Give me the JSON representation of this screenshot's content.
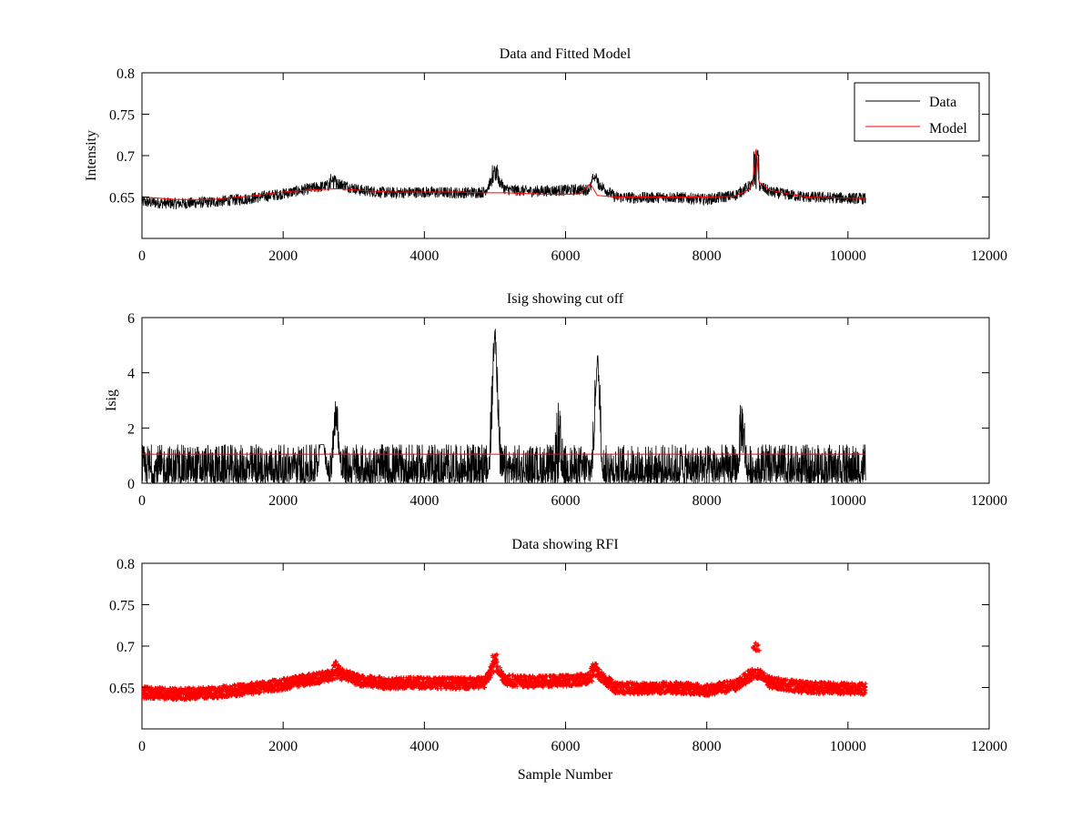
{
  "chart_data": [
    {
      "type": "line",
      "title": "Data and Fitted Model",
      "xlabel": "",
      "ylabel": "Intensity",
      "xlim": [
        0,
        12000
      ],
      "ylim": [
        0.6,
        0.8
      ],
      "xticks": [
        "0",
        "2000",
        "4000",
        "6000",
        "8000",
        "10000",
        "12000"
      ],
      "yticks": [
        "0.65",
        "0.7",
        "0.75",
        "0.8"
      ],
      "legend_position": "top-right",
      "series": [
        {
          "name": "Data",
          "color": "#000000",
          "style": "noisy-line",
          "x_range": [
            0,
            10250
          ],
          "noise_amplitude": 0.007,
          "baseline_points": [
            [
              0,
              0.644
            ],
            [
              500,
              0.642
            ],
            [
              1000,
              0.644
            ],
            [
              1500,
              0.648
            ],
            [
              2000,
              0.654
            ],
            [
              2500,
              0.662
            ],
            [
              2800,
              0.666
            ],
            [
              3100,
              0.658
            ],
            [
              3500,
              0.655
            ],
            [
              4000,
              0.656
            ],
            [
              4500,
              0.655
            ],
            [
              4850,
              0.656
            ],
            [
              5000,
              0.676
            ],
            [
              5150,
              0.659
            ],
            [
              5500,
              0.657
            ],
            [
              5900,
              0.658
            ],
            [
              6300,
              0.659
            ],
            [
              6450,
              0.667
            ],
            [
              6700,
              0.65
            ],
            [
              7000,
              0.649
            ],
            [
              7500,
              0.65
            ],
            [
              8000,
              0.647
            ],
            [
              8400,
              0.652
            ],
            [
              8600,
              0.663
            ],
            [
              8700,
              0.666
            ],
            [
              8900,
              0.656
            ],
            [
              9400,
              0.65
            ],
            [
              10250,
              0.648
            ]
          ],
          "spikes": [
            [
              2700,
              0.678
            ],
            [
              5000,
              0.69
            ],
            [
              6400,
              0.679
            ],
            [
              8700,
              0.708
            ]
          ]
        },
        {
          "name": "Model",
          "color": "#ff0000",
          "style": "line",
          "points": [
            [
              0,
              0.65
            ],
            [
              500,
              0.647
            ],
            [
              1000,
              0.647
            ],
            [
              1500,
              0.651
            ],
            [
              2000,
              0.656
            ],
            [
              2500,
              0.659
            ],
            [
              2800,
              0.66
            ],
            [
              3100,
              0.658
            ],
            [
              3500,
              0.656
            ],
            [
              4000,
              0.656
            ],
            [
              4500,
              0.656
            ],
            [
              4850,
              0.655
            ],
            [
              5000,
              0.655
            ],
            [
              5150,
              0.655
            ],
            [
              5500,
              0.654
            ],
            [
              5900,
              0.653
            ],
            [
              6200,
              0.654
            ],
            [
              6350,
              0.666
            ],
            [
              6450,
              0.652
            ],
            [
              6700,
              0.65
            ],
            [
              7000,
              0.65
            ],
            [
              7500,
              0.65
            ],
            [
              8000,
              0.65
            ],
            [
              8400,
              0.651
            ],
            [
              8600,
              0.659
            ],
            [
              8650,
              0.668
            ],
            [
              8700,
              0.708
            ],
            [
              8740,
              0.668
            ],
            [
              8900,
              0.658
            ],
            [
              9400,
              0.65
            ],
            [
              10250,
              0.648
            ]
          ]
        }
      ]
    },
    {
      "type": "line",
      "title": "Isig showing cut off",
      "xlabel": "",
      "ylabel": "Isig",
      "xlim": [
        0,
        12000
      ],
      "ylim": [
        0,
        6
      ],
      "xticks": [
        "0",
        "2000",
        "4000",
        "6000",
        "8000",
        "10000",
        "12000"
      ],
      "yticks": [
        "0",
        "2",
        "4",
        "6"
      ],
      "series": [
        {
          "color": "#000000",
          "style": "noisy-line",
          "x_range": [
            0,
            10250
          ],
          "base_max": 1.4,
          "peaks": [
            [
              2750,
              3.2
            ],
            [
              5000,
              5.8
            ],
            [
              5900,
              3.0
            ],
            [
              6450,
              4.8
            ],
            [
              8500,
              3.3
            ]
          ],
          "gaps": [
            [
              2550,
              2.0
            ],
            [
              2750,
              2.0
            ],
            [
              5000,
              5.0
            ],
            [
              6450,
              4.0
            ],
            [
              8500,
              1.2
            ]
          ]
        },
        {
          "color": "#ff0000",
          "style": "line",
          "points": [
            [
              0,
              1.05
            ],
            [
              10250,
              1.05
            ]
          ]
        }
      ]
    },
    {
      "type": "scatter",
      "title": "Data showing RFI",
      "xlabel": "Sample Number",
      "ylabel": "",
      "xlim": [
        0,
        12000
      ],
      "ylim": [
        0.6,
        0.8
      ],
      "xticks": [
        "0",
        "2000",
        "4000",
        "6000",
        "8000",
        "10000",
        "12000"
      ],
      "yticks": [
        "0.65",
        "0.7",
        "0.75",
        "0.8"
      ],
      "series": [
        {
          "color": "#ff0000",
          "style": "dense-markers",
          "x_range": [
            0,
            10250
          ],
          "noise_amplitude": 0.007,
          "baseline_points": [
            [
              0,
              0.644
            ],
            [
              500,
              0.642
            ],
            [
              1000,
              0.644
            ],
            [
              1500,
              0.648
            ],
            [
              2000,
              0.654
            ],
            [
              2500,
              0.662
            ],
            [
              2800,
              0.667
            ],
            [
              3100,
              0.658
            ],
            [
              3500,
              0.655
            ],
            [
              4000,
              0.656
            ],
            [
              4500,
              0.655
            ],
            [
              4850,
              0.656
            ],
            [
              5000,
              0.678
            ],
            [
              5150,
              0.659
            ],
            [
              5500,
              0.657
            ],
            [
              5900,
              0.658
            ],
            [
              6300,
              0.66
            ],
            [
              6450,
              0.668
            ],
            [
              6700,
              0.65
            ],
            [
              7000,
              0.649
            ],
            [
              7500,
              0.65
            ],
            [
              8000,
              0.647
            ],
            [
              8400,
              0.652
            ],
            [
              8600,
              0.664
            ],
            [
              8700,
              0.668
            ],
            [
              8900,
              0.656
            ],
            [
              9400,
              0.65
            ],
            [
              10250,
              0.648
            ]
          ],
          "spikes": [
            [
              2750,
              0.682
            ],
            [
              5000,
              0.691
            ],
            [
              6400,
              0.68
            ],
            [
              8700,
              0.704
            ]
          ]
        }
      ]
    }
  ]
}
